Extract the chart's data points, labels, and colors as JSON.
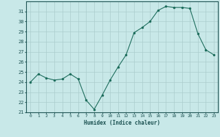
{
  "x": [
    0,
    1,
    2,
    3,
    4,
    5,
    6,
    7,
    8,
    9,
    10,
    11,
    12,
    13,
    14,
    15,
    16,
    17,
    18,
    19,
    20,
    21,
    22,
    23
  ],
  "y": [
    24.0,
    24.8,
    24.4,
    24.2,
    24.3,
    24.8,
    24.3,
    22.2,
    21.3,
    22.7,
    24.2,
    25.5,
    26.7,
    28.9,
    29.4,
    30.0,
    31.1,
    31.5,
    31.4,
    31.4,
    31.3,
    28.8,
    27.2,
    26.7
  ],
  "xlabel": "Humidex (Indice chaleur)",
  "ylim": [
    21,
    32
  ],
  "xlim": [
    -0.5,
    23.5
  ],
  "yticks": [
    21,
    22,
    23,
    24,
    25,
    26,
    27,
    28,
    29,
    30,
    31
  ],
  "xticks": [
    0,
    1,
    2,
    3,
    4,
    5,
    6,
    7,
    8,
    9,
    10,
    11,
    12,
    13,
    14,
    15,
    16,
    17,
    18,
    19,
    20,
    21,
    22,
    23
  ],
  "line_color": "#1a6b5a",
  "marker_color": "#1a6b5a",
  "bg_color": "#c8e8e8",
  "grid_color": "#aacccc",
  "tick_color": "#1a5050",
  "label_color": "#1a5050",
  "font_family": "monospace"
}
